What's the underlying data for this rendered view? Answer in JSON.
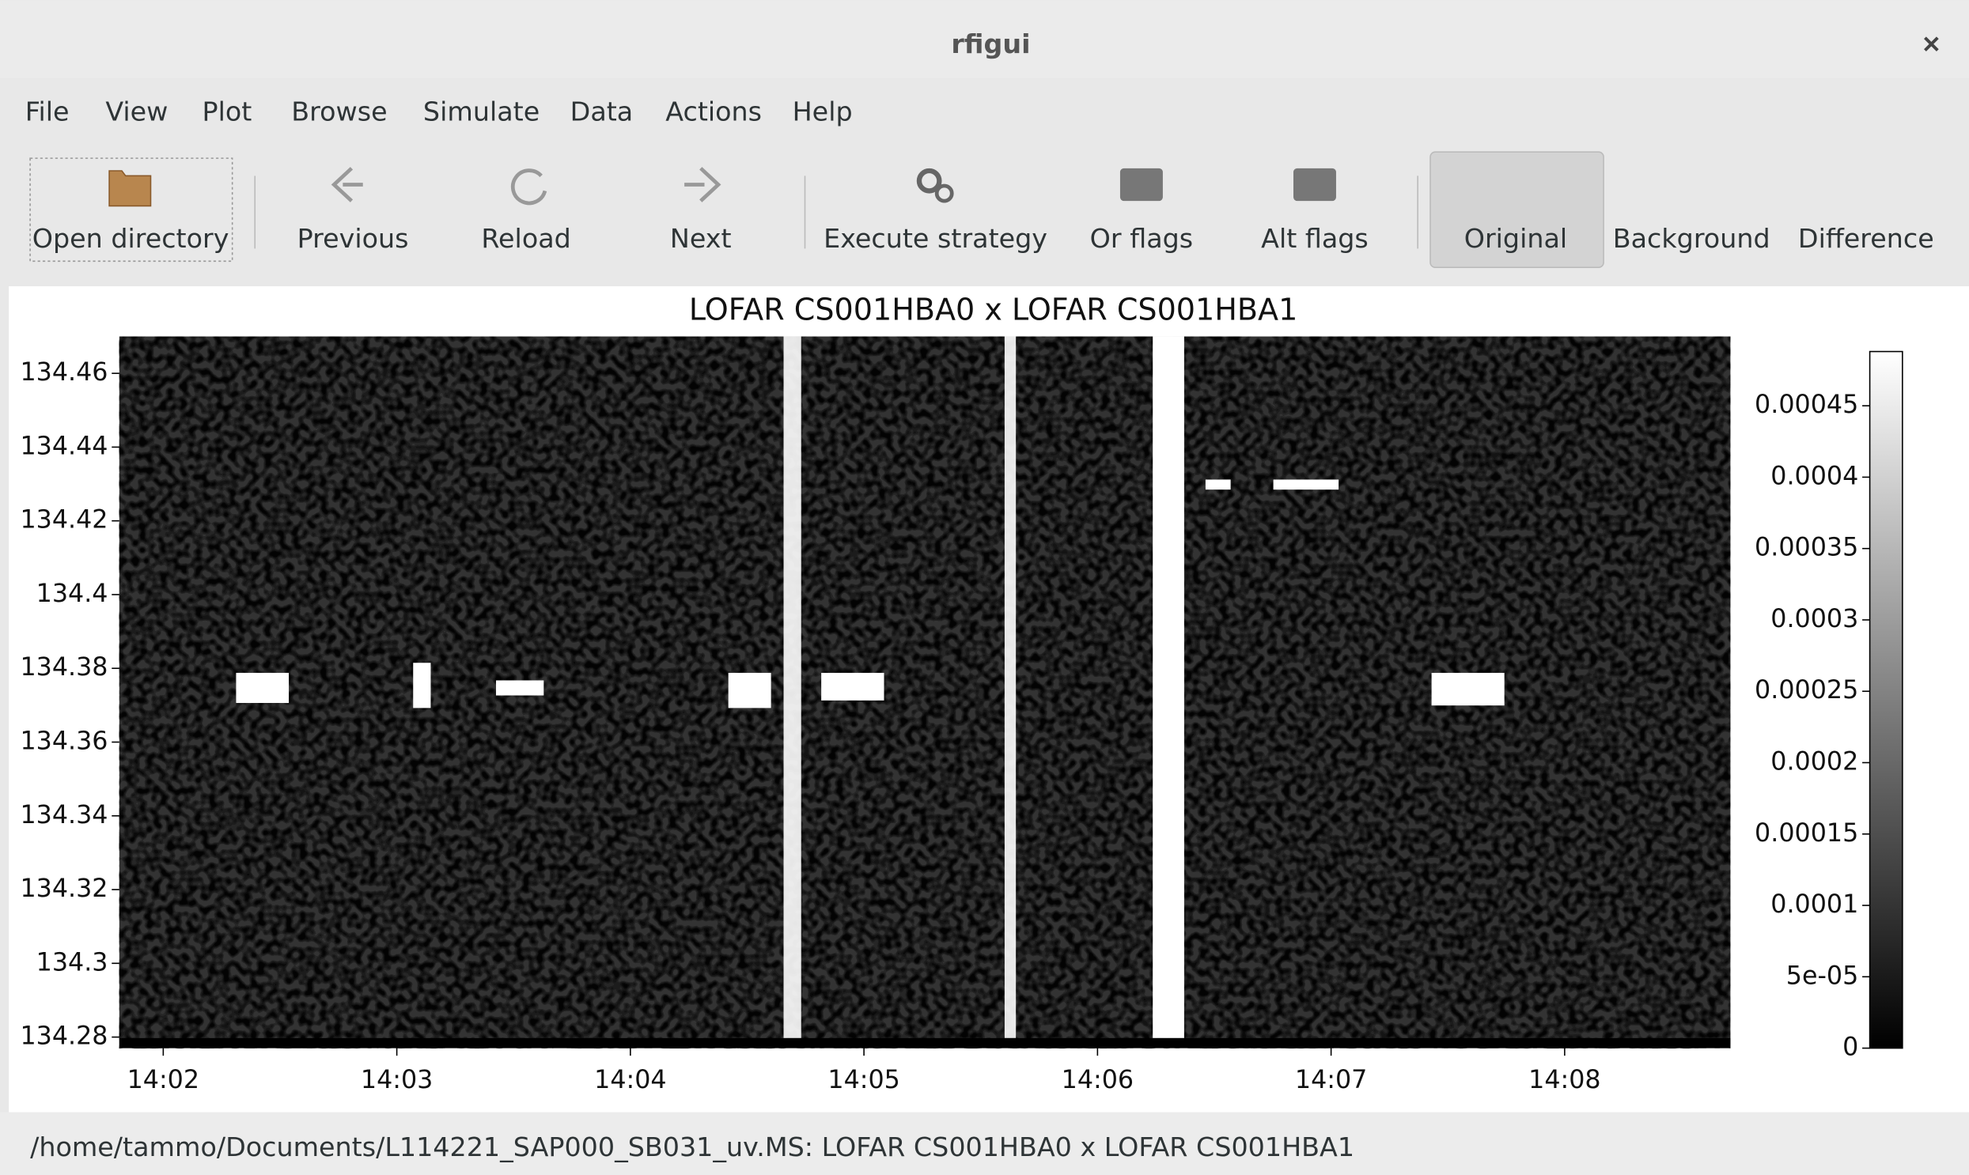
{
  "window": {
    "title": "rfigui"
  },
  "menu": [
    "File",
    "View",
    "Plot",
    "Browse",
    "Simulate",
    "Data",
    "Actions",
    "Help"
  ],
  "toolbar": [
    "Open directory",
    "Previous",
    "Reload",
    "Next",
    "Execute strategy",
    "Or flags",
    "Alt flags",
    "Original",
    "Background",
    "Difference"
  ],
  "chart_data": {
    "type": "heatmap",
    "title": "LOFAR CS001HBA0 x LOFAR CS001HBA1",
    "xticks": [
      "14:02",
      "14:03",
      "14:04",
      "14:05",
      "14:06",
      "14:07",
      "14:08"
    ],
    "ylim": [
      134.277,
      134.47
    ],
    "yticks": [
      134.28,
      134.3,
      134.32,
      134.34,
      134.36,
      134.38,
      134.4,
      134.42,
      134.44,
      134.46
    ],
    "colorbar": {
      "lim": [
        0,
        0.000488
      ],
      "ticks": [
        0,
        {
          "value": 5e-05,
          "label": "5e-05"
        },
        0.0001,
        0.00015,
        0.0002,
        0.00025,
        0.0003,
        0.00035,
        0.0004,
        0.00045
      ]
    }
  },
  "status": "/home/tammo/Documents/L114221_SAP000_SB031_uv.MS: LOFAR CS001HBA0 x LOFAR CS001HBA1"
}
